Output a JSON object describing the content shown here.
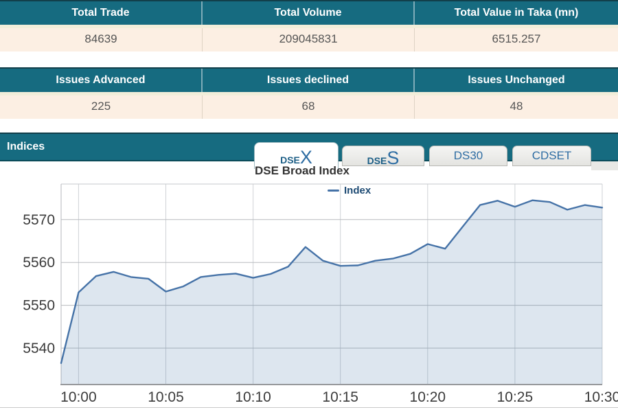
{
  "colors": {
    "header_teal": "#166b80",
    "header_teal_dark_border": "#0a4a58",
    "row_peach": "#fcefe3",
    "tab_text_blue": "#2e6da3",
    "legend_text_blue": "#1d4a73",
    "chart_line_blue": "#4572a7"
  },
  "summary_table": {
    "headers": [
      "Total Trade",
      "Total Volume",
      "Total Value in Taka (mn)"
    ],
    "values": [
      "84639",
      "209045831",
      "6515.257"
    ]
  },
  "issues_table": {
    "headers": [
      "Issues Advanced",
      "Issues declined",
      "Issues Unchanged"
    ],
    "values": [
      "225",
      "68",
      "48"
    ]
  },
  "indices": {
    "title": "Indices",
    "tabs": [
      {
        "prefix": "DSE",
        "suffix": "X",
        "active": true
      },
      {
        "prefix": "DSE",
        "suffix": "S",
        "active": false
      },
      {
        "label": "DS30",
        "active": false
      },
      {
        "label": "CDSET",
        "active": false
      }
    ]
  },
  "chart_data": {
    "type": "area",
    "title": "DSE Broad Index",
    "legend_label": "Index",
    "x": [
      "9:59",
      "10:00",
      "10:01",
      "10:02",
      "10:03",
      "10:04",
      "10:05",
      "10:06",
      "10:07",
      "10:08",
      "10:09",
      "10:10",
      "10:11",
      "10:12",
      "10:13",
      "10:14",
      "10:15",
      "10:16",
      "10:17",
      "10:18",
      "10:19",
      "10:20",
      "10:21",
      "10:22",
      "10:23",
      "10:24",
      "10:25",
      "10:26",
      "10:27",
      "10:28",
      "10:29",
      "10:30"
    ],
    "values": [
      5536.5,
      5553.0,
      5556.8,
      5557.8,
      5556.6,
      5556.2,
      5553.2,
      5554.4,
      5556.6,
      5557.1,
      5557.4,
      5556.4,
      5557.3,
      5559.0,
      5563.6,
      5560.4,
      5559.2,
      5559.3,
      5560.4,
      5560.9,
      5562.0,
      5564.3,
      5563.2,
      5568.3,
      5573.4,
      5574.4,
      5573.0,
      5574.5,
      5574.1,
      5572.3,
      5573.4,
      5572.8
    ],
    "x_ticks": [
      "10:00",
      "10:05",
      "10:10",
      "10:15",
      "10:20",
      "10:25",
      "10:30"
    ],
    "y_ticks": [
      5540,
      5550,
      5560,
      5570
    ],
    "ylim": [
      5531.5,
      5578.3
    ],
    "xlabel": "",
    "ylabel": "",
    "grid": true,
    "legend_position": "top-center",
    "line_color": "#4572a7",
    "fill_color": "rgba(69,114,167,0.18)"
  }
}
